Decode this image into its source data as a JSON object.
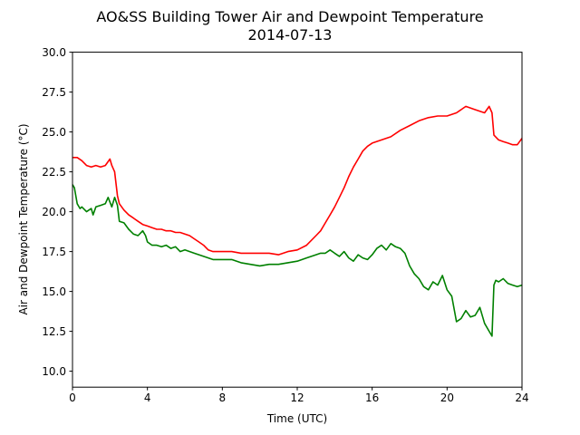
{
  "chart_data": {
    "type": "line",
    "title": "AO&SS Building Tower Air and Dewpoint Temperature",
    "subtitle": "2014-07-13",
    "xlabel": "Time (UTC)",
    "ylabel": "Air and Dewpoint Temperature (°C)",
    "xlim": [
      0,
      24
    ],
    "ylim": [
      9.0,
      30.0
    ],
    "xticks": [
      0,
      4,
      8,
      12,
      16,
      20,
      24
    ],
    "yticks": [
      10.0,
      12.5,
      15.0,
      17.5,
      20.0,
      22.5,
      25.0,
      27.5,
      30.0
    ],
    "grid": false,
    "legend": "none",
    "series": [
      {
        "color": "#ff0000",
        "x": [
          0,
          0.25,
          0.5,
          0.75,
          1,
          1.25,
          1.5,
          1.75,
          2,
          2.1,
          2.25,
          2.4,
          2.5,
          2.75,
          3,
          3.25,
          3.5,
          3.75,
          4,
          4.25,
          4.5,
          4.75,
          5,
          5.25,
          5.5,
          5.75,
          6,
          6.25,
          6.5,
          6.75,
          7,
          7.25,
          7.5,
          7.75,
          8,
          8.5,
          9,
          9.5,
          10,
          10.5,
          11,
          11.5,
          12,
          12.5,
          13,
          13.25,
          13.5,
          13.75,
          14,
          14.25,
          14.5,
          14.75,
          15,
          15.25,
          15.5,
          15.75,
          16,
          16.5,
          17,
          17.5,
          18,
          18.5,
          19,
          19.5,
          20,
          20.5,
          21,
          21.5,
          22,
          22.25,
          22.4,
          22.5,
          22.75,
          23,
          23.25,
          23.5,
          23.75,
          24
        ],
        "y": [
          23.4,
          23.4,
          23.2,
          22.9,
          22.8,
          22.9,
          22.8,
          22.9,
          23.3,
          22.9,
          22.5,
          21.0,
          20.5,
          20.1,
          19.8,
          19.6,
          19.4,
          19.2,
          19.1,
          19.0,
          18.9,
          18.9,
          18.8,
          18.8,
          18.7,
          18.7,
          18.6,
          18.5,
          18.3,
          18.1,
          17.9,
          17.6,
          17.5,
          17.5,
          17.5,
          17.5,
          17.4,
          17.4,
          17.4,
          17.4,
          17.3,
          17.5,
          17.6,
          17.9,
          18.5,
          18.8,
          19.3,
          19.8,
          20.3,
          20.9,
          21.5,
          22.2,
          22.8,
          23.3,
          23.8,
          24.1,
          24.3,
          24.5,
          24.7,
          25.1,
          25.4,
          25.7,
          25.9,
          26.0,
          26.0,
          26.2,
          26.6,
          26.4,
          26.2,
          26.6,
          26.2,
          24.8,
          24.5,
          24.4,
          24.3,
          24.2,
          24.2,
          24.6
        ]
      },
      {
        "color": "#008000",
        "x": [
          0,
          0.1,
          0.25,
          0.4,
          0.5,
          0.75,
          1,
          1.1,
          1.25,
          1.5,
          1.75,
          1.9,
          2,
          2.1,
          2.25,
          2.4,
          2.5,
          2.75,
          3,
          3.25,
          3.5,
          3.75,
          3.9,
          4,
          4.25,
          4.5,
          4.75,
          5,
          5.25,
          5.5,
          5.75,
          6,
          6.5,
          7,
          7.5,
          8,
          8.5,
          9,
          9.5,
          10,
          10.5,
          11,
          11.5,
          12,
          12.5,
          13,
          13.25,
          13.5,
          13.75,
          14,
          14.25,
          14.5,
          14.75,
          15,
          15.25,
          15.5,
          15.75,
          16,
          16.25,
          16.5,
          16.75,
          17,
          17.25,
          17.5,
          17.75,
          18,
          18.25,
          18.5,
          18.75,
          19,
          19.25,
          19.5,
          19.75,
          20,
          20.25,
          20.5,
          20.75,
          21,
          21.25,
          21.5,
          21.75,
          22,
          22.25,
          22.4,
          22.5,
          22.6,
          22.75,
          23,
          23.25,
          23.5,
          23.75,
          24
        ],
        "y": [
          21.7,
          21.5,
          20.5,
          20.2,
          20.3,
          20.0,
          20.2,
          19.8,
          20.3,
          20.4,
          20.5,
          20.9,
          20.6,
          20.3,
          20.9,
          20.4,
          19.4,
          19.3,
          18.9,
          18.6,
          18.5,
          18.8,
          18.5,
          18.1,
          17.9,
          17.9,
          17.8,
          17.9,
          17.7,
          17.8,
          17.5,
          17.6,
          17.4,
          17.2,
          17.0,
          17.0,
          17.0,
          16.8,
          16.7,
          16.6,
          16.7,
          16.7,
          16.8,
          16.9,
          17.1,
          17.3,
          17.4,
          17.4,
          17.6,
          17.4,
          17.2,
          17.5,
          17.1,
          16.9,
          17.3,
          17.1,
          17.0,
          17.3,
          17.7,
          17.9,
          17.6,
          18.0,
          17.8,
          17.7,
          17.4,
          16.6,
          16.1,
          15.8,
          15.3,
          15.1,
          15.6,
          15.4,
          16.0,
          15.1,
          14.7,
          13.1,
          13.3,
          13.8,
          13.4,
          13.5,
          14.0,
          13.0,
          12.5,
          12.2,
          15.4,
          15.7,
          15.6,
          15.8,
          15.5,
          15.4,
          15.3,
          15.4
        ]
      }
    ]
  }
}
